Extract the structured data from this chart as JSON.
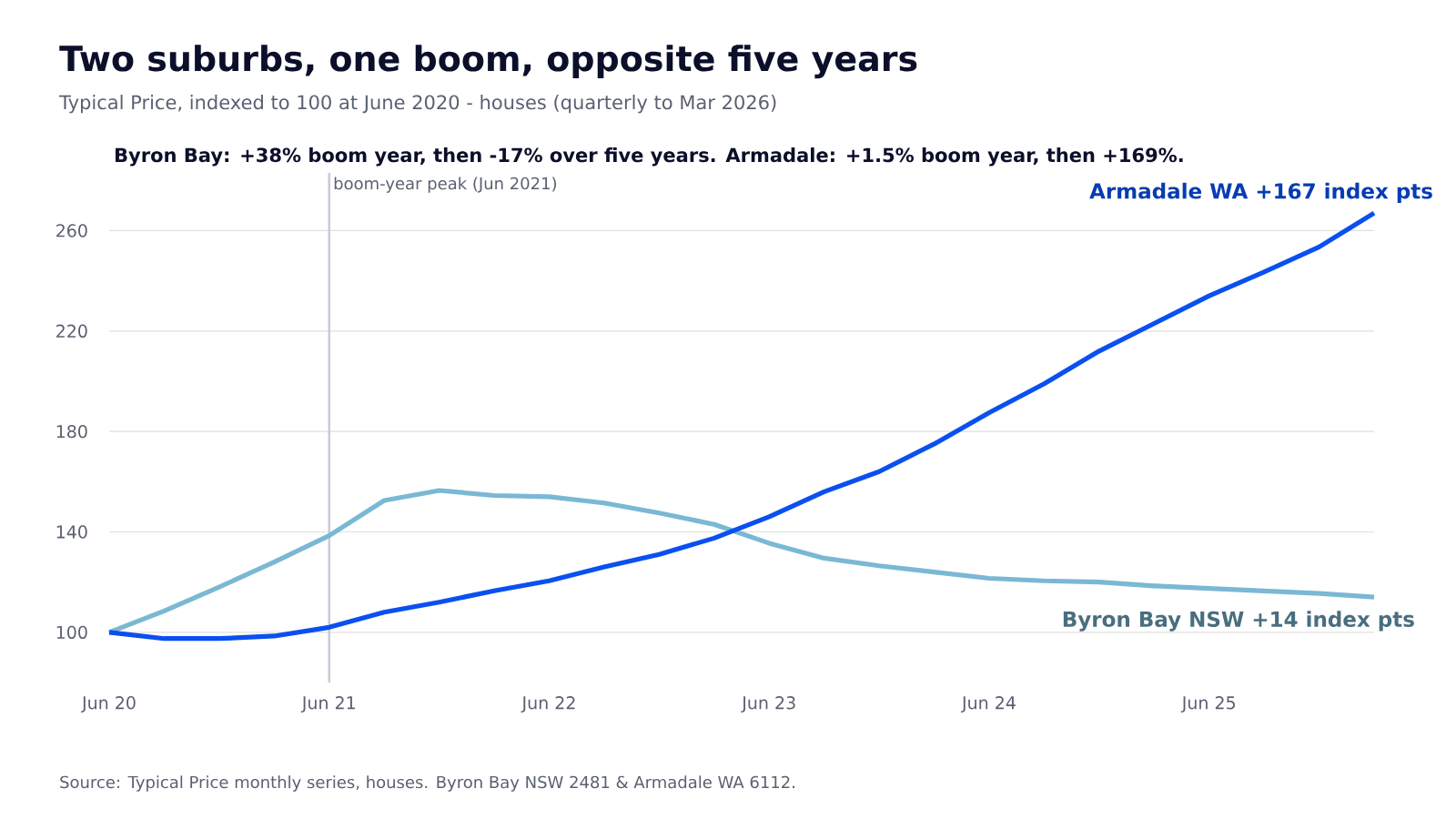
{
  "chart_data": {
    "type": "line",
    "title": "Two suburbs, one boom, opposite five years",
    "subtitle": "Typical Price, indexed to 100 at June 2020 - houses (quarterly to Mar 2026)",
    "annotations": [
      "Byron Bay: +38% boom year, then -17% over five years.  Armadale: +1.5% boom year, then +169%.",
      "Source: Typical Price monthly series, houses. Byron Bay NSW 2481 & Armadale WA 6112."
    ],
    "x": [
      "2020-06",
      "2020-09",
      "2020-12",
      "2021-03",
      "2021-06",
      "2021-09",
      "2021-12",
      "2022-03",
      "2022-06",
      "2022-09",
      "2022-12",
      "2023-03",
      "2023-06",
      "2023-09",
      "2023-12",
      "2024-03",
      "2024-06",
      "2024-09",
      "2024-12",
      "2025-03",
      "2025-06",
      "2025-09",
      "2025-12",
      "2026-03"
    ],
    "series": [
      {
        "name": "Byron Bay NSW  +14 index pts",
        "color": "#7ab8d4",
        "values": [
          100,
          108.5,
          118,
          128,
          138.5,
          152.5,
          156.5,
          154.5,
          154,
          151.5,
          147.5,
          143,
          135.5,
          129.5,
          126.5,
          124,
          121.5,
          120.5,
          120,
          118.5,
          117.5,
          116.5,
          115.5,
          114
        ]
      },
      {
        "name": "Armadale WA  +167 index pts",
        "color": "#0a50f0",
        "values": [
          100,
          97.5,
          97.5,
          98.5,
          102,
          108,
          112,
          116.5,
          120.5,
          126,
          131,
          137.5,
          146,
          156,
          164,
          175,
          187.5,
          199,
          212,
          223,
          234,
          243.5,
          253.5,
          267
        ]
      }
    ],
    "xlim": [
      "2020-06",
      "2026-03"
    ],
    "xticks": [
      {
        "value": "2020-06",
        "label": "Jun 20"
      },
      {
        "value": "2021-06",
        "label": "Jun 21"
      },
      {
        "value": "2022-06",
        "label": "Jun 22"
      },
      {
        "value": "2023-06",
        "label": "Jun 23"
      },
      {
        "value": "2024-06",
        "label": "Jun 24"
      },
      {
        "value": "2025-06",
        "label": "Jun 25"
      }
    ],
    "ylim": [
      80,
      283
    ],
    "yticks": [
      100,
      140,
      180,
      220,
      260
    ],
    "ref_lines": [
      {
        "axis": "x",
        "value": "2021-06",
        "label": "boom-year peak (Jun 2021)",
        "color": "#c8c8d8"
      }
    ],
    "grid": "y",
    "legend": false,
    "marker": "none",
    "line_style": "solid"
  }
}
